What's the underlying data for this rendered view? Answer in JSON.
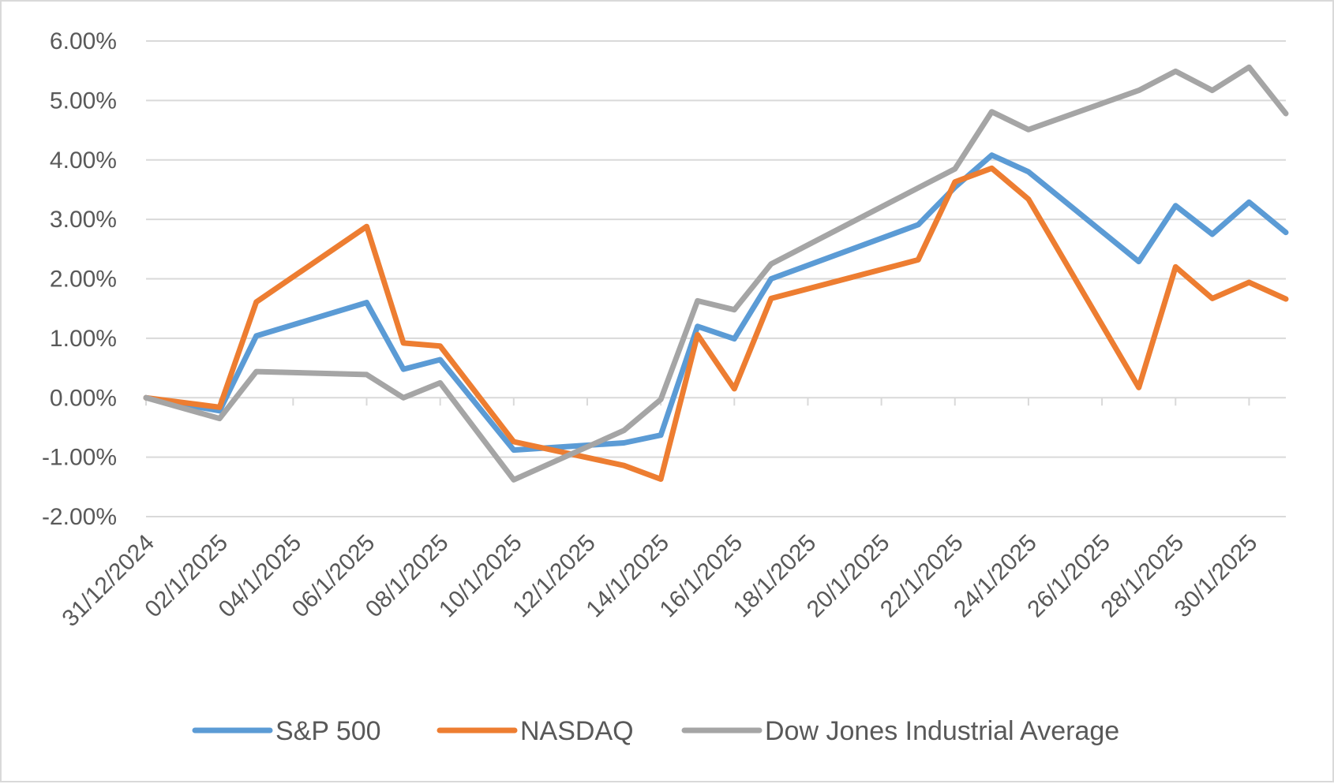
{
  "chart_data": {
    "type": "line",
    "title": "",
    "xlabel": "",
    "ylabel": "",
    "x_start": "2024-12-31",
    "x_end": "2025-01-31",
    "x_tick_labels": [
      "31/12/2024",
      "02/1/2025",
      "04/1/2025",
      "06/1/2025",
      "08/1/2025",
      "10/1/2025",
      "12/1/2025",
      "14/1/2025",
      "16/1/2025",
      "18/1/2025",
      "20/1/2025",
      "22/1/2025",
      "24/1/2025",
      "26/1/2025",
      "28/1/2025",
      "30/1/2025"
    ],
    "y_tick_labels": [
      "6.00%",
      "5.00%",
      "4.00%",
      "3.00%",
      "2.00%",
      "1.00%",
      "0.00%",
      "-1.00%",
      "-2.00%"
    ],
    "ylim": [
      -2,
      6
    ],
    "grid": true,
    "legend_position": "bottom",
    "x": [
      "2024-12-31",
      "2025-01-02",
      "2025-01-03",
      "2025-01-06",
      "2025-01-07",
      "2025-01-08",
      "2025-01-10",
      "2025-01-13",
      "2025-01-14",
      "2025-01-15",
      "2025-01-16",
      "2025-01-17",
      "2025-01-21",
      "2025-01-22",
      "2025-01-23",
      "2025-01-24",
      "2025-01-27",
      "2025-01-28",
      "2025-01-29",
      "2025-01-30",
      "2025-01-31"
    ],
    "series": [
      {
        "name": "S&P 500",
        "color": "#5b9bd5",
        "values": [
          0.0,
          -0.22,
          1.04,
          1.6,
          0.48,
          0.64,
          -0.88,
          -0.76,
          -0.63,
          1.2,
          0.99,
          2.0,
          2.91,
          3.54,
          4.08,
          3.8,
          2.29,
          3.23,
          2.75,
          3.29,
          2.78
        ]
      },
      {
        "name": "NASDAQ",
        "color": "#ed7d31",
        "values": [
          0.0,
          -0.16,
          1.61,
          2.88,
          0.92,
          0.87,
          -0.74,
          -1.14,
          -1.37,
          1.06,
          0.15,
          1.67,
          2.32,
          3.63,
          3.86,
          3.34,
          0.17,
          2.2,
          1.67,
          1.94,
          1.66
        ]
      },
      {
        "name": "Dow Jones Industrial Average",
        "color": "#a5a5a5",
        "values": [
          0.0,
          -0.35,
          0.44,
          0.39,
          0.0,
          0.25,
          -1.38,
          -0.55,
          -0.03,
          1.63,
          1.48,
          2.25,
          3.53,
          3.85,
          4.81,
          4.51,
          5.17,
          5.49,
          5.17,
          5.56,
          4.78
        ]
      }
    ]
  }
}
